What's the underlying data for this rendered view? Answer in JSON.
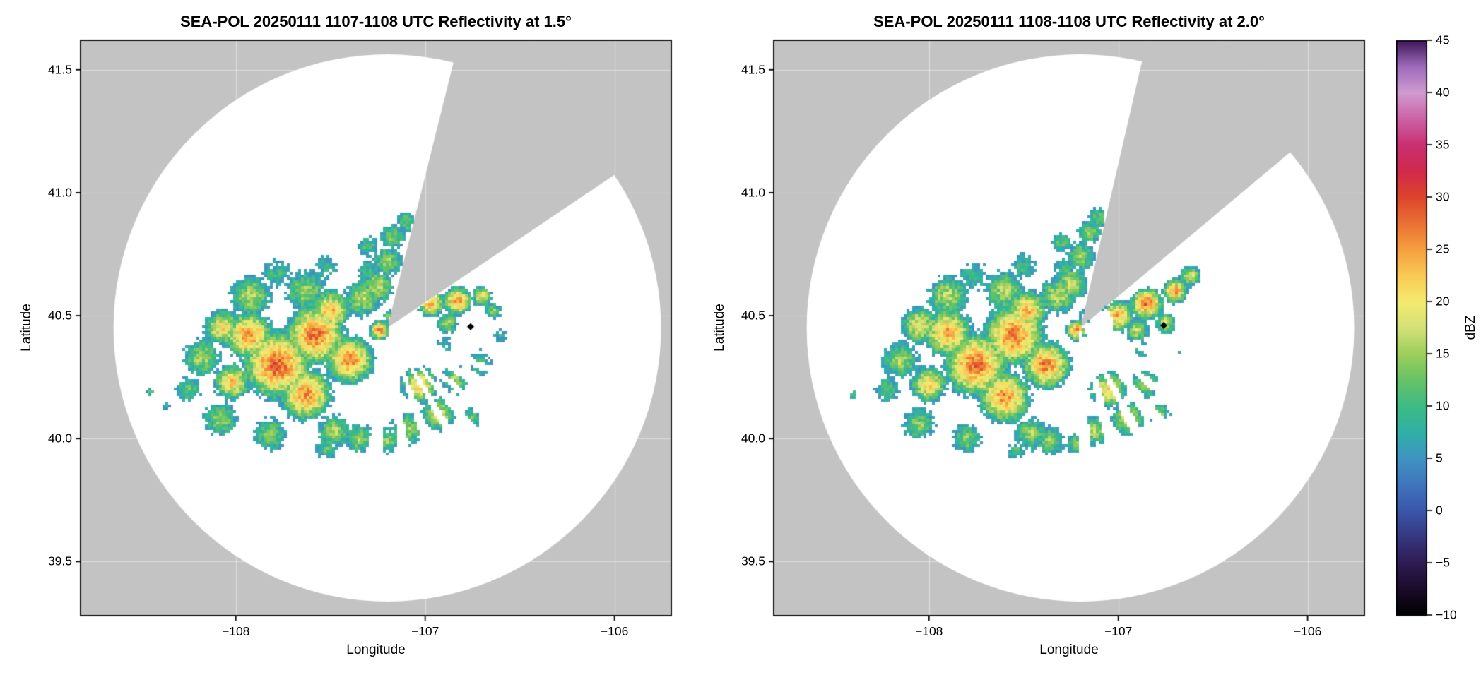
{
  "chart_data": {
    "type": "heatmap",
    "instrument": "SEA-POL",
    "date": "20250111",
    "variable": "Reflectivity",
    "units": "dBZ",
    "description": "Two PPI radar reflectivity scans on a lon/lat map; gray = outside scanned area, white circle = radar coverage, colored echoes in dBZ, gray wedge = missing sector, black diamond = site marker.",
    "background_color": "#c3c3c3",
    "coverage_color": "#ffffff",
    "grid_color": "rgba(255,255,255,0.45)",
    "axes": {
      "xlabel": "Longitude",
      "ylabel": "Latitude",
      "xlim": [
        -108.82,
        -105.7
      ],
      "ylim": [
        39.28,
        41.62
      ],
      "xticks": {
        "values": [
          -108,
          -107,
          -106
        ],
        "labels": [
          "−108",
          "−107",
          "−106"
        ]
      },
      "yticks": {
        "values": [
          39.5,
          40.0,
          40.5,
          41.0,
          41.5
        ],
        "labels": [
          "39.5",
          "40.0",
          "40.5",
          "41.0",
          "41.5"
        ]
      }
    },
    "colorbar": {
      "label": "dBZ",
      "min": -10,
      "max": 45,
      "ticks": {
        "values": [
          -10,
          -5,
          0,
          5,
          10,
          15,
          20,
          25,
          30,
          35,
          40,
          45
        ],
        "labels": [
          "−10",
          "−5",
          "0",
          "5",
          "10",
          "15",
          "20",
          "25",
          "30",
          "35",
          "40",
          "45"
        ]
      },
      "stops": [
        {
          "v": -10,
          "c": "#000000"
        },
        {
          "v": -7.5,
          "c": "#1b0b2a"
        },
        {
          "v": -5,
          "c": "#2f1b54"
        },
        {
          "v": -2.5,
          "c": "#36377f"
        },
        {
          "v": 0,
          "c": "#3a56aa"
        },
        {
          "v": 2.5,
          "c": "#3f75bd"
        },
        {
          "v": 5,
          "c": "#3f94c2"
        },
        {
          "v": 7.5,
          "c": "#30b0a6"
        },
        {
          "v": 10,
          "c": "#3dbb84"
        },
        {
          "v": 12.5,
          "c": "#67c366"
        },
        {
          "v": 15,
          "c": "#9dce5b"
        },
        {
          "v": 17.5,
          "c": "#d4e178"
        },
        {
          "v": 20,
          "c": "#f4eb6e"
        },
        {
          "v": 22.5,
          "c": "#f9ca55"
        },
        {
          "v": 25,
          "c": "#f5a03f"
        },
        {
          "v": 27.5,
          "c": "#ea7133"
        },
        {
          "v": 30,
          "c": "#dc452c"
        },
        {
          "v": 32.5,
          "c": "#d02a4c"
        },
        {
          "v": 35,
          "c": "#c93072"
        },
        {
          "v": 37.5,
          "c": "#cb62a5"
        },
        {
          "v": 40,
          "c": "#cf9bd0"
        },
        {
          "v": 42.5,
          "c": "#9e6cba"
        },
        {
          "v": 45,
          "c": "#3f1757"
        }
      ]
    },
    "panels": [
      {
        "id": "left",
        "title": "SEA-POL 20250111 1107-1108 UTC Reflectivity at 1.5°",
        "time_utc": "1107-1108",
        "elevation_deg": 1.5,
        "radar": {
          "lon": -107.2,
          "lat": 40.45,
          "radius_km": 123
        },
        "missing_sector_deg": [
          14,
          56
        ],
        "ray_sector_deg": [
          104,
          197
        ],
        "visible_rays_deg": [
          [
            104,
            110
          ],
          [
            114,
            119
          ],
          [
            124,
            129
          ],
          [
            133,
            138
          ],
          [
            142,
            147
          ],
          [
            151,
            158
          ],
          [
            163,
            170
          ],
          [
            175,
            182
          ],
          [
            189,
            197
          ]
        ],
        "east_gap": {
          "az": [
            60,
            100
          ],
          "min_r_km": 17
        },
        "marker": {
          "lon": -106.76,
          "lat": 40.455
        },
        "seed": 7,
        "echo_cells": [
          [
            -107.78,
            40.3,
            17,
            29
          ],
          [
            -107.58,
            40.42,
            15,
            28
          ],
          [
            -107.93,
            40.42,
            12,
            26
          ],
          [
            -107.63,
            40.18,
            13,
            26
          ],
          [
            -107.4,
            40.32,
            12,
            27
          ],
          [
            -108.02,
            40.23,
            9,
            23
          ],
          [
            -108.07,
            40.45,
            9,
            21
          ],
          [
            -107.5,
            40.52,
            10,
            24
          ],
          [
            -108.18,
            40.33,
            9,
            16
          ],
          [
            -107.92,
            40.58,
            10,
            17
          ],
          [
            -107.63,
            40.6,
            10,
            15
          ],
          [
            -107.33,
            40.57,
            9,
            17
          ],
          [
            -108.08,
            40.08,
            8,
            15
          ],
          [
            -107.82,
            40.02,
            8,
            14
          ],
          [
            -107.48,
            40.03,
            8,
            16
          ],
          [
            -108.25,
            40.2,
            6,
            13
          ],
          [
            -107.78,
            40.67,
            7,
            10
          ],
          [
            -107.52,
            40.7,
            6,
            9
          ],
          [
            -107.3,
            40.68,
            5,
            11
          ],
          [
            -107.2,
            40.72,
            7,
            15
          ],
          [
            -107.17,
            40.82,
            6,
            14
          ],
          [
            -107.1,
            40.88,
            5,
            13
          ],
          [
            -107.25,
            40.62,
            8,
            17
          ],
          [
            -107.3,
            40.78,
            5,
            12
          ],
          [
            -107.24,
            40.44,
            5,
            26
          ],
          [
            -107.19,
            40.5,
            3,
            14
          ],
          [
            -106.97,
            40.55,
            7,
            23
          ],
          [
            -106.83,
            40.56,
            7,
            26
          ],
          [
            -106.7,
            40.58,
            5,
            20
          ],
          [
            -106.88,
            40.47,
            5,
            16
          ],
          [
            -106.64,
            40.52,
            4,
            14
          ],
          [
            -107.03,
            40.22,
            9,
            22
          ],
          [
            -106.93,
            40.1,
            8,
            19
          ],
          [
            -107.1,
            40.04,
            8,
            16
          ],
          [
            -106.84,
            40.24,
            7,
            15
          ],
          [
            -107.2,
            39.99,
            6,
            14
          ],
          [
            -106.76,
            40.08,
            5,
            14
          ],
          [
            -106.7,
            40.3,
            5,
            13
          ],
          [
            -107.35,
            40.0,
            7,
            15
          ],
          [
            -107.52,
            39.96,
            5,
            12
          ],
          [
            -108.45,
            40.19,
            2,
            12
          ],
          [
            -108.36,
            40.13,
            2,
            10
          ],
          [
            -106.9,
            40.38,
            4,
            7
          ],
          [
            -106.72,
            40.34,
            3,
            6
          ],
          [
            -106.6,
            40.42,
            3,
            8
          ]
        ]
      },
      {
        "id": "right",
        "title": "SEA-POL 20250111 1108-1108 UTC Reflectivity at 2.0°",
        "time_utc": "1108-1108",
        "elevation_deg": 2.0,
        "radar": {
          "lon": -107.2,
          "lat": 40.45,
          "radius_km": 123
        },
        "missing_sector_deg": [
          13,
          50
        ],
        "ray_sector_deg": [
          100,
          192
        ],
        "visible_rays_deg": [
          [
            100,
            105
          ],
          [
            110,
            115
          ],
          [
            120,
            126
          ],
          [
            131,
            137
          ],
          [
            142,
            149
          ],
          [
            154,
            162
          ],
          [
            168,
            175
          ],
          [
            181,
            192
          ]
        ],
        "east_gap": {
          "az": [
            54,
            100
          ],
          "min_r_km": 15
        },
        "marker": {
          "lon": -106.76,
          "lat": 40.46
        },
        "seed": 13,
        "echo_cells": [
          [
            -107.75,
            40.3,
            16,
            28
          ],
          [
            -107.55,
            40.42,
            15,
            28
          ],
          [
            -107.9,
            40.43,
            12,
            25
          ],
          [
            -107.6,
            40.17,
            13,
            26
          ],
          [
            -107.38,
            40.3,
            12,
            27
          ],
          [
            -108.0,
            40.22,
            9,
            22
          ],
          [
            -108.05,
            40.46,
            9,
            20
          ],
          [
            -107.48,
            40.52,
            10,
            24
          ],
          [
            -108.15,
            40.32,
            9,
            16
          ],
          [
            -107.9,
            40.58,
            10,
            17
          ],
          [
            -107.6,
            40.6,
            10,
            16
          ],
          [
            -107.32,
            40.58,
            9,
            17
          ],
          [
            -108.05,
            40.06,
            8,
            14
          ],
          [
            -107.8,
            40.0,
            7,
            14
          ],
          [
            -107.46,
            40.02,
            8,
            15
          ],
          [
            -108.22,
            40.2,
            6,
            12
          ],
          [
            -107.76,
            40.66,
            7,
            10
          ],
          [
            -107.5,
            40.7,
            6,
            10
          ],
          [
            -107.28,
            40.7,
            5,
            11
          ],
          [
            -107.2,
            40.74,
            7,
            15
          ],
          [
            -107.15,
            40.84,
            6,
            14
          ],
          [
            -107.1,
            40.9,
            5,
            12
          ],
          [
            -107.25,
            40.63,
            8,
            17
          ],
          [
            -107.3,
            40.8,
            5,
            12
          ],
          [
            -107.22,
            40.44,
            5,
            26
          ],
          [
            -107.17,
            40.5,
            3,
            13
          ],
          [
            -107.0,
            40.5,
            8,
            24
          ],
          [
            -106.85,
            40.55,
            8,
            28
          ],
          [
            -106.7,
            40.6,
            6,
            26
          ],
          [
            -106.62,
            40.66,
            5,
            20
          ],
          [
            -106.9,
            40.44,
            6,
            17
          ],
          [
            -106.75,
            40.47,
            5,
            18
          ],
          [
            -107.05,
            40.2,
            9,
            22
          ],
          [
            -106.95,
            40.08,
            8,
            18
          ],
          [
            -107.12,
            40.03,
            7,
            16
          ],
          [
            -106.86,
            40.22,
            7,
            16
          ],
          [
            -107.22,
            39.98,
            5,
            13
          ],
          [
            -106.78,
            40.1,
            5,
            14
          ],
          [
            -107.36,
            39.99,
            7,
            14
          ],
          [
            -107.54,
            39.95,
            4,
            12
          ],
          [
            -108.4,
            40.18,
            2,
            11
          ],
          [
            -106.88,
            40.36,
            4,
            7
          ],
          [
            -106.7,
            40.33,
            3,
            7
          ]
        ]
      }
    ]
  }
}
